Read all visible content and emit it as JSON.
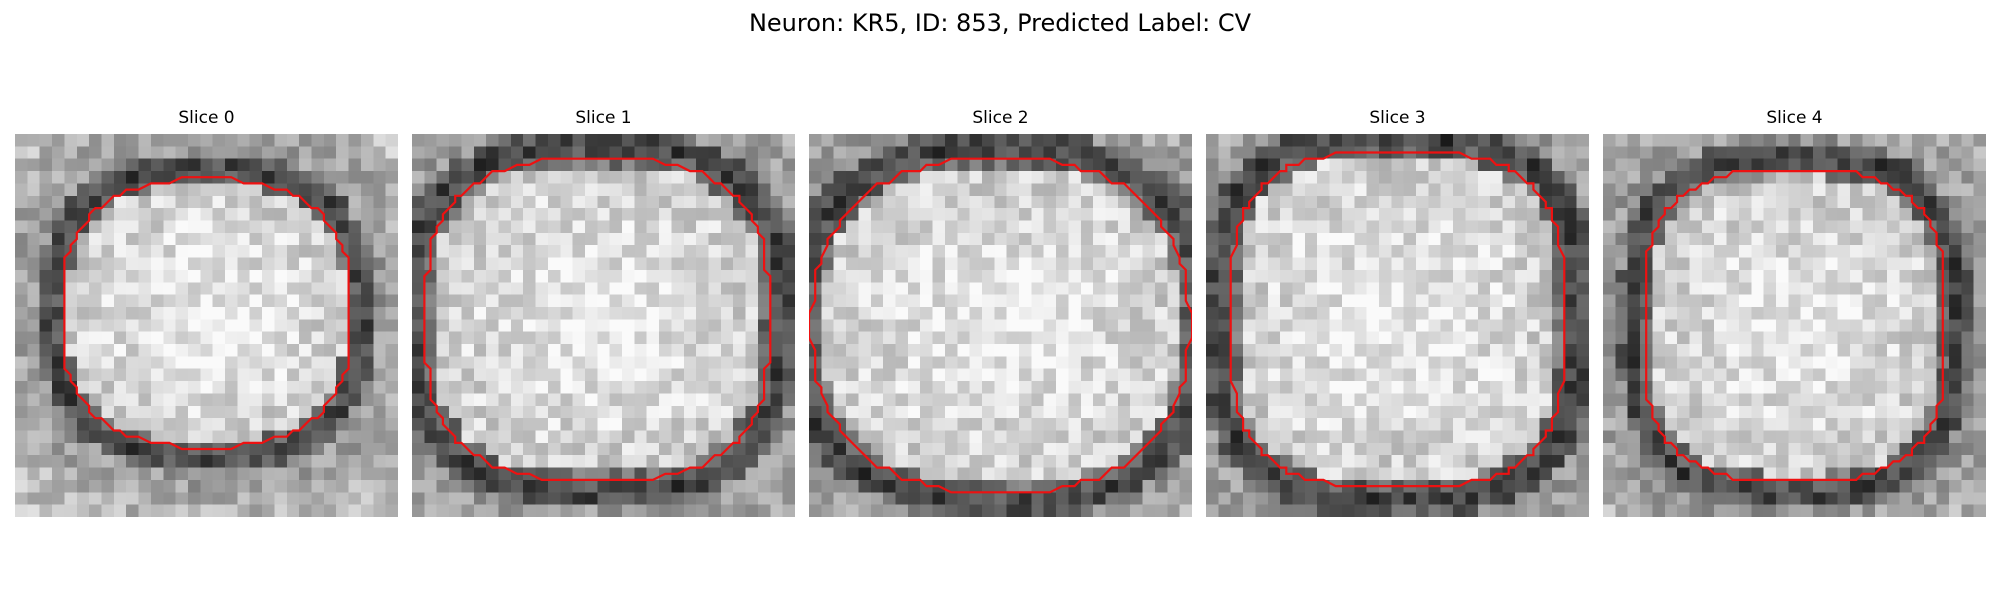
{
  "figure": {
    "title": "Neuron: KR5, ID: 853, Predicted Label: CV"
  },
  "panels": [
    {
      "title": "Slice 0"
    },
    {
      "title": "Slice 1"
    },
    {
      "title": "Slice 2"
    },
    {
      "title": "Slice 3"
    },
    {
      "title": "Slice 4"
    }
  ],
  "colors": {
    "contour": "#ee1111",
    "background": "#ffffff"
  }
}
